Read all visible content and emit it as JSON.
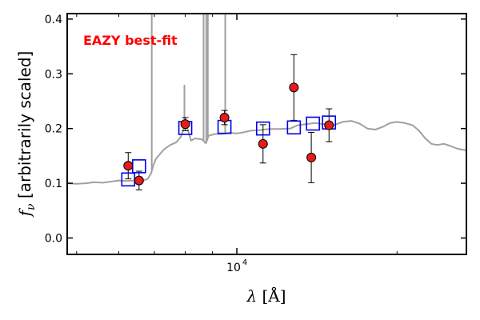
{
  "chart_data": {
    "type": "scatter",
    "title": "",
    "xlabel": "λ [Å]",
    "ylabel": "f_ν [arbitrarily scaled]",
    "xscale": "log",
    "xlim": [
      4800,
      27000
    ],
    "ylim": [
      -0.03,
      0.41
    ],
    "grid": false,
    "annotation": {
      "text": "EAZY best-fit",
      "color": "#ff0000"
    },
    "y_ticks": [
      {
        "value": 0.0,
        "label": "0.0"
      },
      {
        "value": 0.1,
        "label": "0.1"
      },
      {
        "value": 0.2,
        "label": "0.2"
      },
      {
        "value": 0.3,
        "label": "0.3"
      },
      {
        "value": 0.4,
        "label": "0.4"
      }
    ],
    "x_major_ticks": [
      {
        "value": 10000,
        "base": "10",
        "exp": "4"
      }
    ],
    "x_minor_ticks": [
      5000,
      6000,
      7000,
      8000,
      9000,
      20000
    ],
    "series": [
      {
        "kind": "line",
        "color": "#a0a0a0",
        "points": [
          [
            4800,
            0.1
          ],
          [
            5000,
            0.099
          ],
          [
            5200,
            0.1
          ],
          [
            5400,
            0.102
          ],
          [
            5600,
            0.101
          ],
          [
            5800,
            0.103
          ],
          [
            6000,
            0.105
          ],
          [
            6200,
            0.104
          ],
          [
            6400,
            0.105
          ],
          [
            6600,
            0.103
          ],
          [
            6800,
            0.108
          ],
          [
            6900,
            0.118
          ],
          [
            6980,
            0.135
          ],
          [
            7050,
            0.145
          ],
          [
            7150,
            0.152
          ],
          [
            7300,
            0.162
          ],
          [
            7500,
            0.17
          ],
          [
            7700,
            0.175
          ],
          [
            7850,
            0.185
          ],
          [
            7950,
            0.2
          ],
          [
            8050,
            0.205
          ],
          [
            8200,
            0.178
          ],
          [
            8350,
            0.182
          ],
          [
            8600,
            0.18
          ],
          [
            8750,
            0.173
          ],
          [
            8850,
            0.187
          ],
          [
            9100,
            0.19
          ],
          [
            9400,
            0.19
          ],
          [
            9700,
            0.192
          ],
          [
            10000,
            0.191
          ],
          [
            10300,
            0.193
          ],
          [
            10600,
            0.196
          ],
          [
            11000,
            0.197
          ],
          [
            11500,
            0.199
          ],
          [
            12000,
            0.199
          ],
          [
            12600,
            0.2
          ],
          [
            13000,
            0.206
          ],
          [
            13500,
            0.208
          ],
          [
            14000,
            0.21
          ],
          [
            14600,
            0.208
          ],
          [
            15200,
            0.206
          ],
          [
            15800,
            0.212
          ],
          [
            16400,
            0.214
          ],
          [
            17000,
            0.209
          ],
          [
            17600,
            0.2
          ],
          [
            18200,
            0.198
          ],
          [
            18800,
            0.203
          ],
          [
            19400,
            0.21
          ],
          [
            20000,
            0.212
          ],
          [
            20700,
            0.21
          ],
          [
            21400,
            0.206
          ],
          [
            22000,
            0.196
          ],
          [
            22600,
            0.182
          ],
          [
            23200,
            0.172
          ],
          [
            23800,
            0.17
          ],
          [
            24500,
            0.172
          ],
          [
            25200,
            0.168
          ],
          [
            26000,
            0.163
          ],
          [
            27000,
            0.16
          ]
        ],
        "lines": [
          {
            "x": 6920,
            "top": 0.41
          },
          {
            "x": 7970,
            "top": 0.28
          },
          {
            "x": 8660,
            "top": 0.41
          },
          {
            "x": 8760,
            "top": 0.41
          },
          {
            "x": 8820,
            "top": 0.41
          },
          {
            "x": 9510,
            "top": 0.41
          }
        ]
      },
      {
        "kind": "model_photometry",
        "marker": "square",
        "color": "#0000ee",
        "x": [
          6250,
          6550,
          8000,
          9480,
          11200,
          12800,
          13900,
          14900
        ],
        "y": [
          0.107,
          0.131,
          0.201,
          0.203,
          0.2,
          0.202,
          0.209,
          0.211
        ]
      },
      {
        "kind": "observed_photometry",
        "marker": "circle",
        "color": "#ff0000",
        "x": [
          6250,
          6550,
          8000,
          9480,
          11200,
          12800,
          13800,
          14900
        ],
        "y": [
          0.132,
          0.105,
          0.208,
          0.22,
          0.172,
          0.275,
          0.147,
          0.206
        ],
        "yerr": [
          0.024,
          0.017,
          0.012,
          0.013,
          0.035,
          0.06,
          0.046,
          0.03
        ]
      }
    ]
  }
}
